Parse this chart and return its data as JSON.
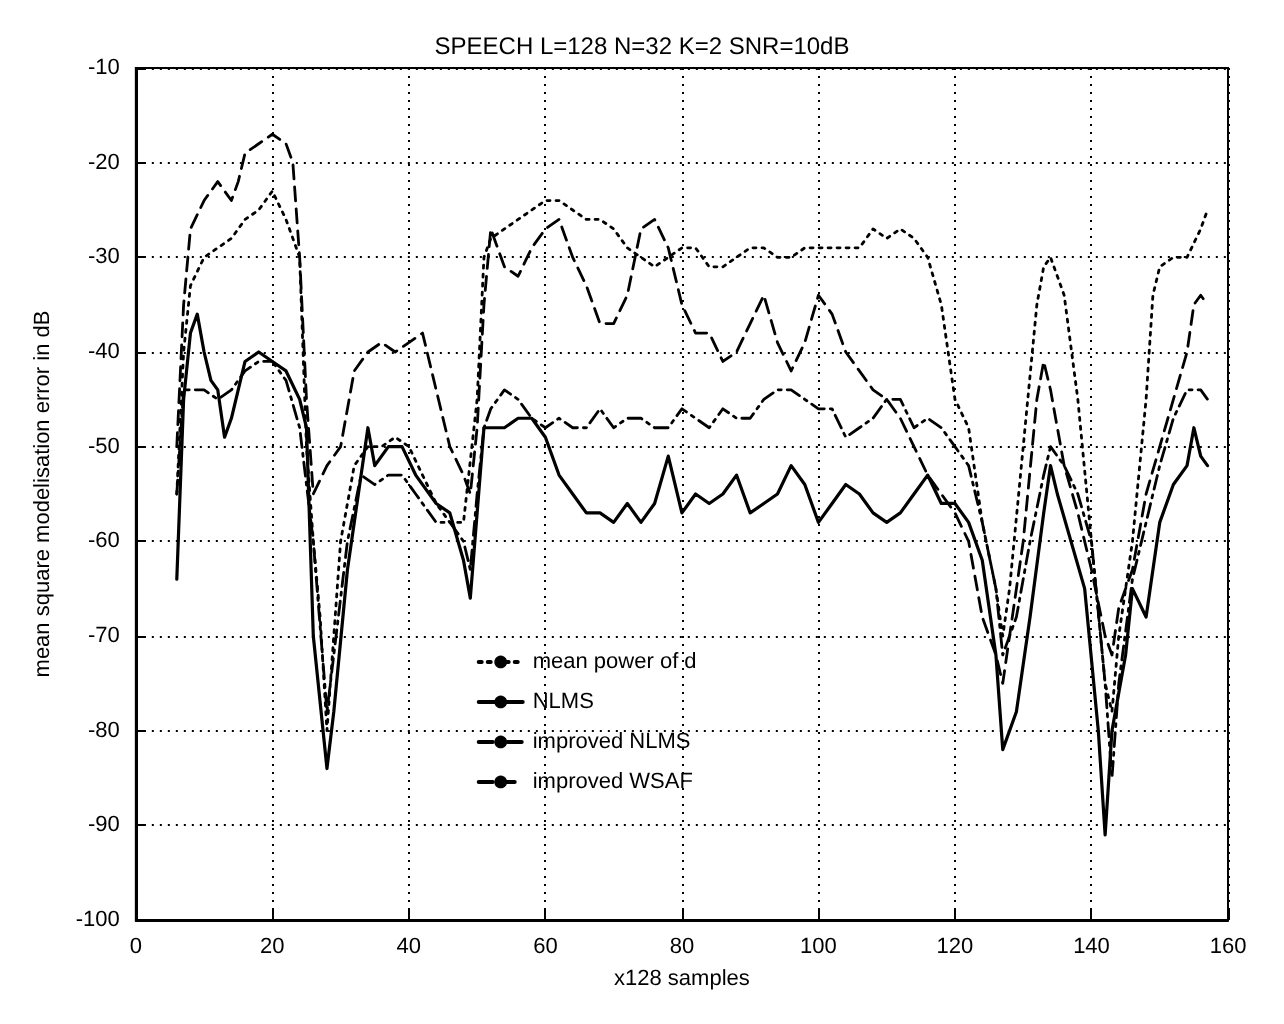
{
  "chart_data": {
    "type": "line",
    "title": "SPEECH L=128 N=32 K=2 SNR=10dB",
    "xlabel": "x128 samples",
    "ylabel": "mean square modelisation error in dB",
    "xlim": [
      0,
      160
    ],
    "xticks": [
      0,
      20,
      40,
      60,
      80,
      100,
      120,
      140,
      160
    ],
    "ylim": [
      -100,
      -10
    ],
    "yticks": [
      -100,
      -90,
      -80,
      -70,
      -60,
      -50,
      -40,
      -30,
      -20,
      -10
    ],
    "grid": true,
    "legend": "bottom",
    "marker": "none",
    "series": [
      {
        "name": "mean power of d",
        "color": "#000000",
        "line_style": "dotted",
        "x": [
          6,
          7,
          8,
          10,
          12,
          14,
          16,
          18,
          20,
          22,
          24,
          25,
          26,
          27,
          28,
          29,
          30,
          32,
          34,
          36,
          38,
          40,
          42,
          44,
          46,
          48,
          50,
          51,
          52,
          54,
          56,
          58,
          60,
          62,
          64,
          66,
          68,
          70,
          72,
          74,
          76,
          78,
          80,
          82,
          84,
          86,
          88,
          90,
          92,
          94,
          96,
          98,
          100,
          102,
          104,
          106,
          108,
          110,
          112,
          114,
          116,
          118,
          120,
          122,
          124,
          126,
          127,
          128,
          130,
          132,
          133,
          134,
          136,
          138,
          140,
          142,
          143,
          144,
          146,
          148,
          149,
          150,
          152,
          154,
          156,
          157
        ],
        "values": [
          -55,
          -40,
          -33,
          -30,
          -29,
          -28,
          -26,
          -25,
          -23,
          -26,
          -30,
          -50,
          -60,
          -68,
          -80,
          -70,
          -60,
          -52,
          -50,
          -50,
          -49,
          -50,
          -53,
          -56,
          -58,
          -58,
          -45,
          -30,
          -28,
          -27,
          -26,
          -25,
          -24,
          -24,
          -25,
          -26,
          -26,
          -27,
          -29,
          -30,
          -31,
          -30,
          -29,
          -29,
          -31,
          -31,
          -30,
          -29,
          -29,
          -30,
          -30,
          -29,
          -29,
          -29,
          -29,
          -29,
          -27,
          -28,
          -27,
          -28,
          -30,
          -35,
          -45,
          -48,
          -58,
          -65,
          -70,
          -65,
          -50,
          -35,
          -31,
          -30,
          -34,
          -45,
          -60,
          -75,
          -78,
          -70,
          -60,
          -45,
          -34,
          -31,
          -30,
          -30,
          -27,
          -25
        ]
      },
      {
        "name": "NLMS",
        "color": "#000000",
        "line_style": "solid",
        "x": [
          6,
          7,
          8,
          9,
          10,
          11,
          12,
          13,
          14,
          15,
          16,
          18,
          20,
          22,
          24,
          25,
          26,
          28,
          29,
          31,
          33,
          34,
          35,
          37,
          39,
          41,
          44,
          46,
          48,
          49,
          50,
          51,
          52,
          54,
          56,
          58,
          60,
          62,
          64,
          66,
          68,
          70,
          72,
          74,
          76,
          78,
          80,
          82,
          84,
          86,
          88,
          90,
          92,
          94,
          96,
          98,
          100,
          102,
          104,
          106,
          108,
          110,
          112,
          114,
          116,
          118,
          120,
          122,
          124,
          126,
          127,
          129,
          131,
          133,
          134,
          135,
          137,
          139,
          141,
          142,
          143,
          145,
          146,
          148,
          150,
          152,
          154,
          155,
          156,
          157
        ],
        "values": [
          -64,
          -45,
          -38,
          -36,
          -40,
          -43,
          -44,
          -49,
          -47,
          -44,
          -41,
          -40,
          -41,
          -42,
          -45,
          -48,
          -70,
          -84,
          -78,
          -63,
          -53,
          -48,
          -52,
          -50,
          -50,
          -53,
          -56,
          -57,
          -62,
          -66,
          -57,
          -48,
          -48,
          -48,
          -47,
          -47,
          -49,
          -53,
          -55,
          -57,
          -57,
          -58,
          -56,
          -58,
          -56,
          -51,
          -57,
          -55,
          -56,
          -55,
          -53,
          -57,
          -56,
          -55,
          -52,
          -54,
          -58,
          -56,
          -54,
          -55,
          -57,
          -58,
          -57,
          -55,
          -53,
          -56,
          -56,
          -58,
          -62,
          -72,
          -82,
          -78,
          -68,
          -57,
          -52,
          -55,
          -60,
          -65,
          -80,
          -91,
          -80,
          -72,
          -65,
          -68,
          -58,
          -54,
          -52,
          -48,
          -51,
          -52
        ]
      },
      {
        "name": "improved NLMS",
        "color": "#000000",
        "line_style": "dashdot",
        "x": [
          6,
          7,
          8,
          10,
          12,
          14,
          16,
          18,
          20,
          22,
          24,
          26,
          28,
          29,
          31,
          33,
          35,
          37,
          39,
          41,
          44,
          46,
          48,
          49,
          50,
          51,
          52,
          54,
          56,
          58,
          60,
          62,
          64,
          66,
          68,
          70,
          72,
          74,
          76,
          78,
          80,
          82,
          84,
          86,
          88,
          90,
          92,
          94,
          96,
          98,
          100,
          102,
          104,
          106,
          108,
          110,
          112,
          114,
          116,
          118,
          120,
          122,
          124,
          126,
          127,
          129,
          131,
          133,
          134,
          136,
          138,
          140,
          142,
          143,
          144,
          146,
          148,
          150,
          152,
          154,
          156,
          157
        ],
        "values": [
          -55,
          -44,
          -44,
          -44,
          -45,
          -44,
          -42,
          -41,
          -41,
          -43,
          -48,
          -60,
          -78,
          -72,
          -60,
          -53,
          -54,
          -53,
          -53,
          -55,
          -58,
          -58,
          -60,
          -63,
          -55,
          -48,
          -46,
          -44,
          -45,
          -47,
          -48,
          -47,
          -48,
          -48,
          -46,
          -48,
          -47,
          -47,
          -48,
          -48,
          -46,
          -47,
          -48,
          -46,
          -47,
          -47,
          -45,
          -44,
          -44,
          -45,
          -46,
          -46,
          -49,
          -48,
          -47,
          -45,
          -45,
          -48,
          -47,
          -48,
          -50,
          -52,
          -58,
          -65,
          -72,
          -68,
          -60,
          -53,
          -50,
          -52,
          -55,
          -60,
          -75,
          -85,
          -75,
          -64,
          -58,
          -52,
          -47,
          -44,
          -44,
          -45
        ]
      },
      {
        "name": "improved WSAF",
        "color": "#000000",
        "line_style": "dashed",
        "x": [
          6,
          7,
          8,
          10,
          12,
          14,
          15,
          16,
          18,
          20,
          22,
          23,
          24,
          25,
          26,
          28,
          30,
          32,
          34,
          36,
          38,
          40,
          42,
          44,
          46,
          48,
          49,
          50,
          51,
          52,
          54,
          56,
          58,
          60,
          62,
          64,
          66,
          68,
          70,
          72,
          74,
          76,
          78,
          80,
          82,
          84,
          86,
          88,
          90,
          92,
          94,
          96,
          98,
          100,
          102,
          104,
          106,
          108,
          110,
          112,
          114,
          116,
          118,
          120,
          122,
          124,
          126,
          127,
          128,
          130,
          132,
          133,
          134,
          136,
          138,
          140,
          142,
          143,
          144,
          146,
          148,
          150,
          152,
          154,
          155,
          156,
          157
        ],
        "values": [
          -50,
          -35,
          -27,
          -24,
          -22,
          -24,
          -22,
          -19,
          -18,
          -17,
          -18,
          -20,
          -30,
          -45,
          -55,
          -52,
          -50,
          -42,
          -40,
          -39,
          -40,
          -39,
          -38,
          -44,
          -50,
          -53,
          -55,
          -48,
          -35,
          -27,
          -31,
          -32,
          -29,
          -27,
          -26,
          -30,
          -33,
          -37,
          -37,
          -34,
          -27,
          -26,
          -29,
          -35,
          -38,
          -38,
          -41,
          -40,
          -37,
          -34,
          -39,
          -42,
          -39,
          -34,
          -36,
          -40,
          -42,
          -44,
          -45,
          -47,
          -50,
          -53,
          -55,
          -57,
          -60,
          -68,
          -72,
          -75,
          -70,
          -60,
          -45,
          -41,
          -44,
          -52,
          -57,
          -63,
          -70,
          -72,
          -67,
          -63,
          -55,
          -50,
          -45,
          -40,
          -35,
          -34,
          -35
        ]
      }
    ]
  }
}
